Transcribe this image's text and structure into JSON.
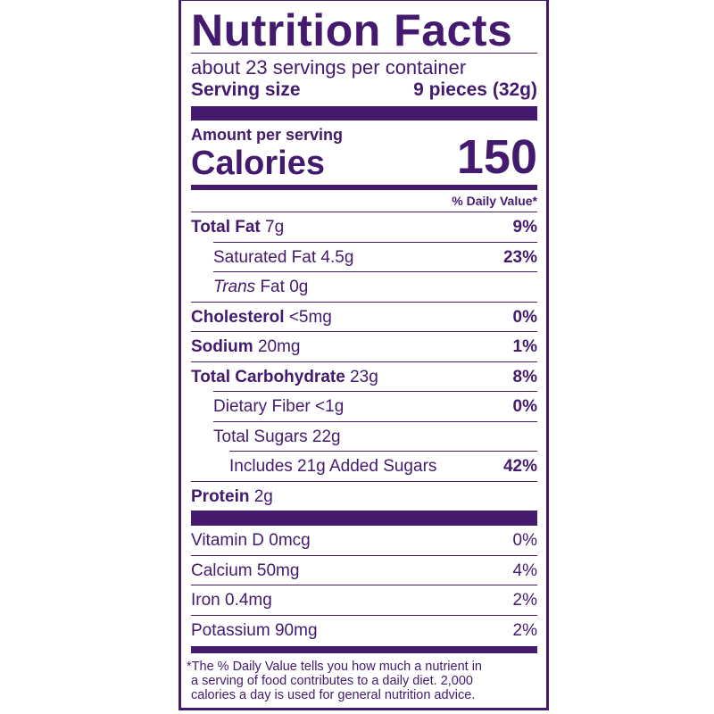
{
  "title": "Nutrition Facts",
  "servings_per_container": "about 23 servings per container",
  "serving_size": {
    "label": "Serving size",
    "value": "9 pieces (32g)"
  },
  "amount_per_serving": "Amount per serving",
  "calories": {
    "label": "Calories",
    "value": "150"
  },
  "daily_value_header": "% Daily Value*",
  "nutrients": [
    {
      "name": "Total Fat",
      "amount": "7g",
      "dv": "9%"
    },
    {
      "name": "Saturated Fat",
      "amount": "4.5g",
      "dv": "23%"
    },
    {
      "name": "Trans",
      "name_suffix": "Fat",
      "amount": "0g",
      "dv": ""
    },
    {
      "name": "Cholesterol",
      "amount": "<5mg",
      "dv": "0%"
    },
    {
      "name": "Sodium",
      "amount": "20mg",
      "dv": "1%"
    },
    {
      "name": "Total Carbohydrate",
      "amount": "23g",
      "dv": "8%"
    },
    {
      "name": "Dietary Fiber",
      "amount": "<1g",
      "dv": "0%"
    },
    {
      "name": "Total Sugars",
      "amount": "22g",
      "dv": ""
    },
    {
      "name": "Includes 21g Added Sugars",
      "amount": "",
      "dv": "42%"
    },
    {
      "name": "Protein",
      "amount": "2g",
      "dv": ""
    }
  ],
  "vitamins": [
    {
      "name": "Vitamin D 0mcg",
      "dv": "0%"
    },
    {
      "name": "Calcium 50mg",
      "dv": "4%"
    },
    {
      "name": "Iron 0.4mg",
      "dv": "2%"
    },
    {
      "name": "Potassium 90mg",
      "dv": "2%"
    }
  ],
  "footnote": [
    "*The % Daily Value tells you how much a nutrient in",
    "a serving of food contributes to a daily diet. 2,000",
    "calories a day is used for general nutrition advice."
  ],
  "colors": {
    "ink": "#431a6e",
    "background": "#ffffff"
  }
}
